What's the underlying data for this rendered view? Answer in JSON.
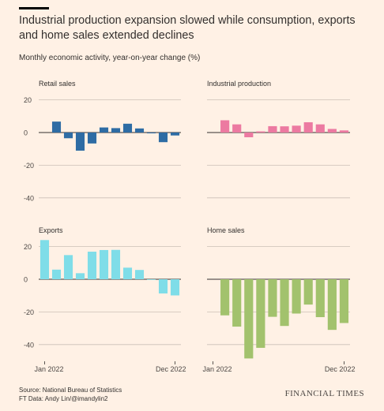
{
  "header": {
    "title": "Industrial production expansion slowed while consumption, exports and home sales extended declines",
    "subtitle": "Monthly economic activity, year-on-year change (%)"
  },
  "footer": {
    "source": "Source: National Bureau of Statistics",
    "credit": "FT Data: Andy Lin/@imandylin2",
    "brand": "FINANCIAL TIMES"
  },
  "chart_data": [
    {
      "type": "bar",
      "title": "Retail sales",
      "color": "#2e6ca4",
      "categories": [
        "Jan 2022",
        "Feb 2022",
        "Mar 2022",
        "Apr 2022",
        "May 2022",
        "Jun 2022",
        "Jul 2022",
        "Aug 2022",
        "Sep 2022",
        "Oct 2022",
        "Nov 2022",
        "Dec 2022"
      ],
      "values": [
        null,
        6.7,
        -3.5,
        -11.1,
        -6.7,
        3.1,
        2.7,
        5.4,
        2.5,
        -0.5,
        -5.9,
        -1.8
      ],
      "ylim": [
        -45,
        20
      ],
      "yticks": [
        20,
        0,
        -20,
        -40
      ],
      "x_tick_labels": []
    },
    {
      "type": "bar",
      "title": "Industrial production",
      "color": "#ec7aa1",
      "categories": [
        "Jan 2022",
        "Feb 2022",
        "Mar 2022",
        "Apr 2022",
        "May 2022",
        "Jun 2022",
        "Jul 2022",
        "Aug 2022",
        "Sep 2022",
        "Oct 2022",
        "Nov 2022",
        "Dec 2022"
      ],
      "values": [
        null,
        7.5,
        5.0,
        -2.9,
        0.7,
        3.9,
        3.8,
        4.2,
        6.3,
        5.0,
        2.2,
        1.3
      ],
      "ylim": [
        -45,
        20
      ],
      "yticks": [
        20,
        0,
        -20,
        -40
      ],
      "x_tick_labels": []
    },
    {
      "type": "bar",
      "title": "Exports",
      "color": "#7fdde8",
      "categories": [
        "Jan 2022",
        "Feb 2022",
        "Mar 2022",
        "Apr 2022",
        "May 2022",
        "Jun 2022",
        "Jul 2022",
        "Aug 2022",
        "Sep 2022",
        "Oct 2022",
        "Nov 2022",
        "Dec 2022"
      ],
      "values": [
        24.0,
        5.9,
        14.8,
        3.7,
        16.9,
        17.9,
        18.0,
        7.1,
        5.7,
        -0.3,
        -8.7,
        -9.9
      ],
      "ylim": [
        -48,
        24
      ],
      "yticks": [
        20,
        0,
        -20,
        -40
      ],
      "x_tick_labels": [
        "Jan 2022",
        "Dec 2022"
      ]
    },
    {
      "type": "bar",
      "title": "Home sales",
      "color": "#a2c26d",
      "categories": [
        "Jan 2022",
        "Feb 2022",
        "Mar 2022",
        "Apr 2022",
        "May 2022",
        "Jun 2022",
        "Jul 2022",
        "Aug 2022",
        "Sep 2022",
        "Oct 2022",
        "Nov 2022",
        "Dec 2022"
      ],
      "values": [
        null,
        -22.1,
        -29.0,
        -48.5,
        -42.0,
        -23.0,
        -28.6,
        -21.0,
        -15.5,
        -23.2,
        -31.0,
        -26.8
      ],
      "ylim": [
        -48,
        24
      ],
      "yticks": [
        20,
        0,
        -20,
        -40
      ],
      "x_tick_labels": [
        "Jan 2022",
        "Dec 2022"
      ]
    }
  ]
}
